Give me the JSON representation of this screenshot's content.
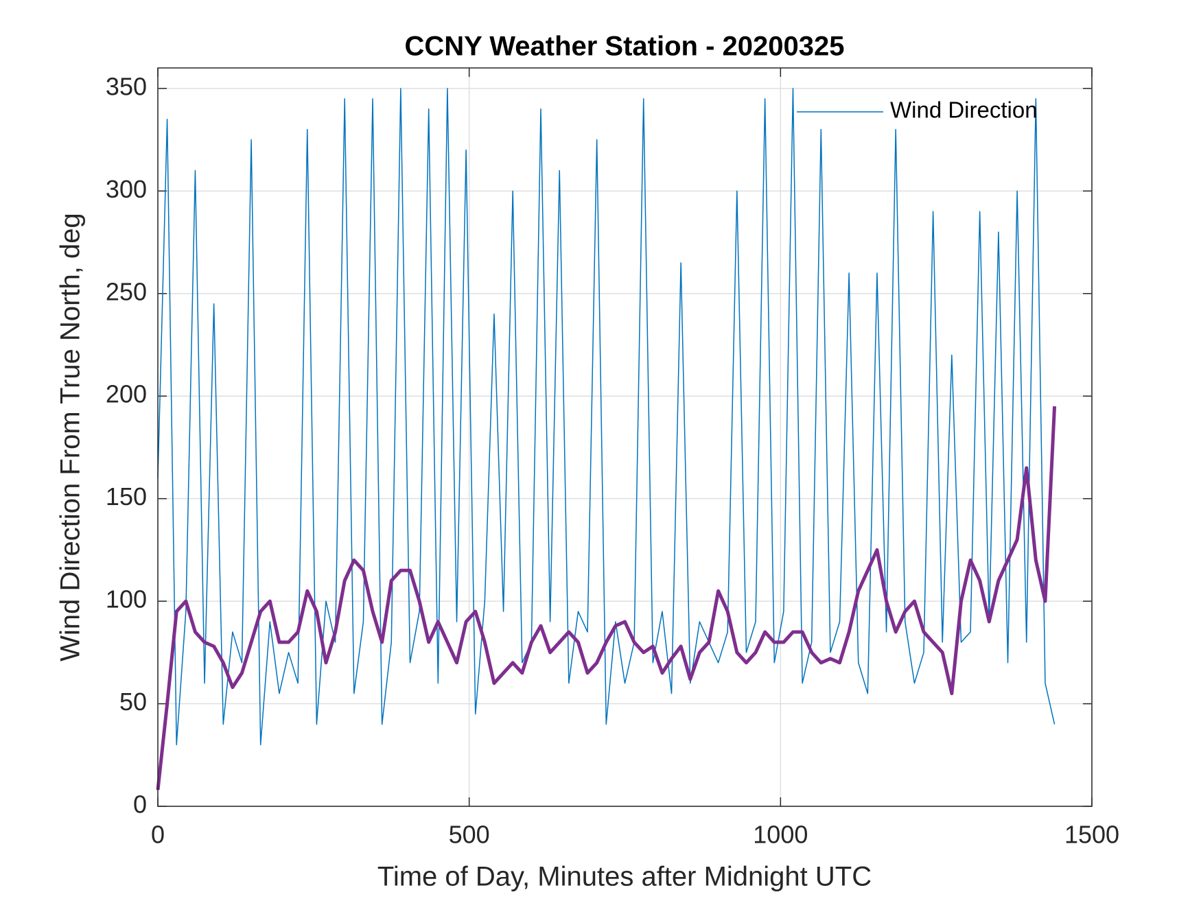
{
  "chart_data": {
    "type": "line",
    "title": "CCNY Weather Station - 20200325",
    "xlabel": "Time of Day, Minutes after Midnight UTC",
    "ylabel": "Wind Direction From True North, deg",
    "x": [
      0,
      15,
      30,
      45,
      60,
      75,
      90,
      105,
      120,
      135,
      150,
      165,
      180,
      195,
      210,
      225,
      240,
      255,
      270,
      285,
      300,
      315,
      330,
      345,
      360,
      375,
      390,
      405,
      420,
      435,
      450,
      465,
      480,
      495,
      510,
      525,
      540,
      555,
      570,
      585,
      600,
      615,
      630,
      645,
      660,
      675,
      690,
      705,
      720,
      735,
      750,
      765,
      780,
      795,
      810,
      825,
      840,
      855,
      870,
      885,
      900,
      915,
      930,
      945,
      960,
      975,
      990,
      1005,
      1020,
      1035,
      1050,
      1065,
      1080,
      1095,
      1110,
      1125,
      1140,
      1155,
      1170,
      1185,
      1200,
      1215,
      1230,
      1245,
      1260,
      1275,
      1290,
      1305,
      1320,
      1335,
      1350,
      1365,
      1380,
      1395,
      1410,
      1425,
      1440
    ],
    "series": [
      {
        "name": "Wind Direction",
        "color": "#0072bd",
        "width": 1.5,
        "values": [
          160,
          335,
          30,
          95,
          310,
          60,
          245,
          40,
          85,
          70,
          325,
          30,
          90,
          55,
          75,
          60,
          330,
          40,
          100,
          80,
          345,
          55,
          90,
          345,
          40,
          80,
          350,
          70,
          95,
          340,
          60,
          350,
          90,
          320,
          45,
          100,
          240,
          95,
          300,
          70,
          80,
          340,
          90,
          310,
          60,
          95,
          85,
          325,
          40,
          90,
          60,
          80,
          345,
          70,
          95,
          55,
          265,
          60,
          90,
          80,
          70,
          85,
          300,
          75,
          90,
          345,
          70,
          95,
          350,
          60,
          80,
          330,
          75,
          90,
          260,
          70,
          55,
          260,
          85,
          330,
          90,
          60,
          75,
          290,
          80,
          220,
          80,
          85,
          290,
          90,
          280,
          70,
          300,
          80,
          345,
          60,
          40
        ]
      },
      {
        "color": "#7e2f8e",
        "width": 5,
        "values": [
          8,
          50,
          95,
          100,
          85,
          80,
          78,
          70,
          58,
          65,
          80,
          95,
          100,
          80,
          80,
          85,
          105,
          95,
          70,
          85,
          110,
          120,
          115,
          95,
          80,
          110,
          115,
          115,
          100,
          80,
          90,
          80,
          70,
          90,
          95,
          80,
          60,
          65,
          70,
          65,
          80,
          88,
          75,
          80,
          85,
          80,
          65,
          70,
          80,
          88,
          90,
          80,
          75,
          78,
          65,
          72,
          78,
          62,
          75,
          80,
          105,
          95,
          75,
          70,
          75,
          85,
          80,
          80,
          85,
          85,
          75,
          70,
          72,
          70,
          85,
          105,
          115,
          125,
          100,
          85,
          95,
          100,
          85,
          80,
          75,
          55,
          100,
          120,
          110,
          90,
          110,
          120,
          130,
          165,
          120,
          100,
          195
        ]
      }
    ],
    "xlim": [
      0,
      1500
    ],
    "xticks": [
      0,
      500,
      1000,
      1500
    ],
    "ylim": [
      0,
      360
    ],
    "yticks": [
      0,
      50,
      100,
      150,
      200,
      250,
      300,
      350
    ],
    "grid": true,
    "legend": "northeast"
  }
}
